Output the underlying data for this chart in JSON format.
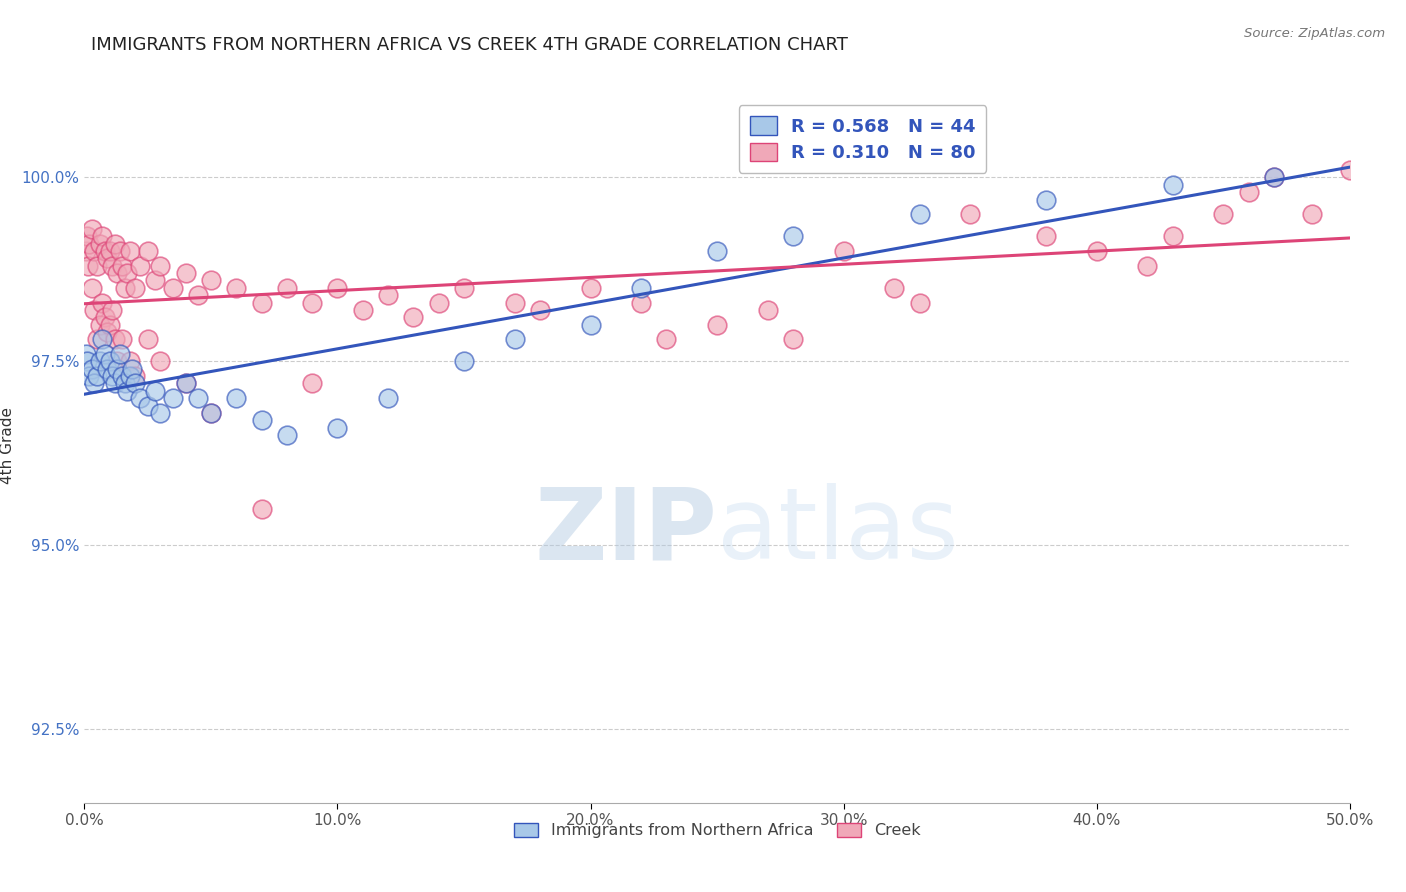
{
  "title": "IMMIGRANTS FROM NORTHERN AFRICA VS CREEK 4TH GRADE CORRELATION CHART",
  "source": "Source: ZipAtlas.com",
  "ylabel": "4th Grade",
  "xmin": 0.0,
  "xmax": 50.0,
  "ymin": 91.5,
  "ymax": 101.2,
  "yticks": [
    92.5,
    95.0,
    97.5,
    100.0
  ],
  "xticks": [
    0.0,
    10.0,
    20.0,
    30.0,
    40.0,
    50.0
  ],
  "legend_blue_r": "0.568",
  "legend_blue_n": "44",
  "legend_pink_r": "0.310",
  "legend_pink_n": "80",
  "legend_label_blue": "Immigrants from Northern Africa",
  "legend_label_pink": "Creek",
  "blue_color": "#a8c8e8",
  "pink_color": "#f0a8b8",
  "trend_blue": "#3355bb",
  "trend_pink": "#dd4477",
  "watermark_zip": "ZIP",
  "watermark_atlas": "atlas",
  "blue_scatter_x": [
    0.05,
    0.1,
    0.2,
    0.3,
    0.4,
    0.5,
    0.6,
    0.7,
    0.8,
    0.9,
    1.0,
    1.1,
    1.2,
    1.3,
    1.4,
    1.5,
    1.6,
    1.7,
    1.8,
    1.9,
    2.0,
    2.2,
    2.5,
    2.8,
    3.0,
    3.5,
    4.0,
    4.5,
    5.0,
    6.0,
    7.0,
    8.0,
    10.0,
    12.0,
    15.0,
    17.0,
    20.0,
    22.0,
    25.0,
    28.0,
    33.0,
    38.0,
    43.0,
    47.0
  ],
  "blue_scatter_y": [
    97.6,
    97.5,
    97.3,
    97.4,
    97.2,
    97.3,
    97.5,
    97.8,
    97.6,
    97.4,
    97.5,
    97.3,
    97.2,
    97.4,
    97.6,
    97.3,
    97.2,
    97.1,
    97.3,
    97.4,
    97.2,
    97.0,
    96.9,
    97.1,
    96.8,
    97.0,
    97.2,
    97.0,
    96.8,
    97.0,
    96.7,
    96.5,
    96.6,
    97.0,
    97.5,
    97.8,
    98.0,
    98.5,
    99.0,
    99.2,
    99.5,
    99.7,
    99.9,
    100.0
  ],
  "pink_scatter_x": [
    0.05,
    0.1,
    0.15,
    0.2,
    0.3,
    0.4,
    0.5,
    0.6,
    0.7,
    0.8,
    0.9,
    1.0,
    1.1,
    1.2,
    1.3,
    1.4,
    1.5,
    1.6,
    1.7,
    1.8,
    2.0,
    2.2,
    2.5,
    2.8,
    3.0,
    3.5,
    4.0,
    4.5,
    5.0,
    6.0,
    7.0,
    8.0,
    9.0,
    10.0,
    11.0,
    12.0,
    13.0,
    14.0,
    15.0,
    17.0,
    18.0,
    20.0,
    22.0,
    23.0,
    25.0,
    27.0,
    28.0,
    30.0,
    32.0,
    33.0,
    35.0,
    38.0,
    40.0,
    42.0,
    43.0,
    45.0,
    46.0,
    47.0,
    48.5,
    50.0,
    0.3,
    0.4,
    0.5,
    0.6,
    0.7,
    0.8,
    0.9,
    1.0,
    1.1,
    1.2,
    1.3,
    1.5,
    1.8,
    2.0,
    2.5,
    3.0,
    4.0,
    5.0,
    7.0,
    9.0
  ],
  "pink_scatter_y": [
    99.0,
    99.2,
    98.8,
    99.1,
    99.3,
    99.0,
    98.8,
    99.1,
    99.2,
    99.0,
    98.9,
    99.0,
    98.8,
    99.1,
    98.7,
    99.0,
    98.8,
    98.5,
    98.7,
    99.0,
    98.5,
    98.8,
    99.0,
    98.6,
    98.8,
    98.5,
    98.7,
    98.4,
    98.6,
    98.5,
    98.3,
    98.5,
    98.3,
    98.5,
    98.2,
    98.4,
    98.1,
    98.3,
    98.5,
    98.3,
    98.2,
    98.5,
    98.3,
    97.8,
    98.0,
    98.2,
    97.8,
    99.0,
    98.5,
    98.3,
    99.5,
    99.2,
    99.0,
    98.8,
    99.2,
    99.5,
    99.8,
    100.0,
    99.5,
    100.1,
    98.5,
    98.2,
    97.8,
    98.0,
    98.3,
    98.1,
    97.9,
    98.0,
    98.2,
    97.8,
    97.5,
    97.8,
    97.5,
    97.3,
    97.8,
    97.5,
    97.2,
    96.8,
    95.5,
    97.2
  ]
}
